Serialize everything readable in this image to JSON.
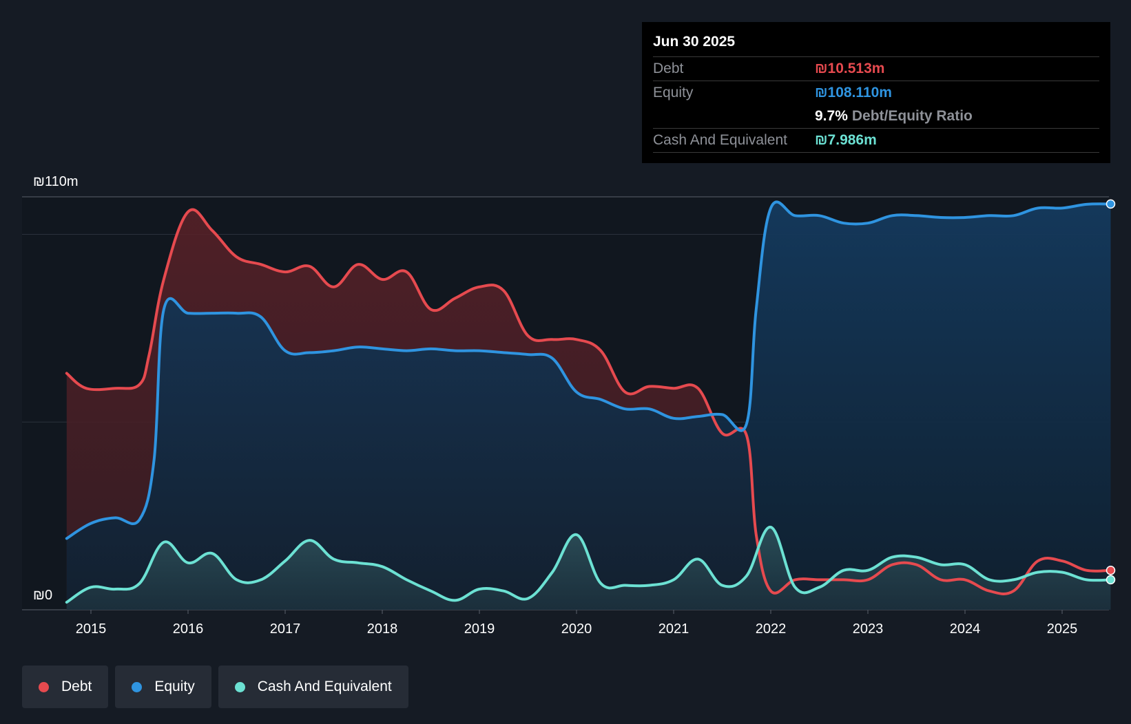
{
  "tooltip": {
    "date": "Jun 30 2025",
    "debt_label": "Debt",
    "debt_value": "₪10.513m",
    "equity_label": "Equity",
    "equity_value": "₪108.110m",
    "ratio_value": "9.7%",
    "ratio_label": "Debt/Equity Ratio",
    "cash_label": "Cash And Equivalent",
    "cash_value": "₪7.986m"
  },
  "legend": {
    "debt": "Debt",
    "equity": "Equity",
    "cash": "Cash And Equivalent"
  },
  "colors": {
    "debt": "#e64a4f",
    "equity": "#2f94e0",
    "cash": "#6ce1d3",
    "background": "#151b24"
  },
  "chart_data": {
    "type": "area",
    "y_top_label": "₪110m",
    "y_zero_label": "₪0",
    "ylim": [
      0,
      110
    ],
    "xlim": [
      2014.75,
      2025.5
    ],
    "x_ticks": [
      "2015",
      "2016",
      "2017",
      "2018",
      "2019",
      "2020",
      "2021",
      "2022",
      "2023",
      "2024",
      "2025"
    ],
    "grid": true,
    "legend_position": "bottom-left",
    "series": [
      {
        "name": "Debt",
        "color": "#e64a4f",
        "points": [
          [
            2014.75,
            63
          ],
          [
            2014.95,
            59
          ],
          [
            2015.25,
            59
          ],
          [
            2015.5,
            60
          ],
          [
            2015.6,
            68
          ],
          [
            2015.75,
            88
          ],
          [
            2016.0,
            106
          ],
          [
            2016.25,
            101
          ],
          [
            2016.5,
            94
          ],
          [
            2016.75,
            92
          ],
          [
            2017.0,
            90
          ],
          [
            2017.25,
            91.5
          ],
          [
            2017.5,
            86
          ],
          [
            2017.75,
            92
          ],
          [
            2018.0,
            88
          ],
          [
            2018.25,
            90
          ],
          [
            2018.5,
            80
          ],
          [
            2018.75,
            83
          ],
          [
            2019.0,
            86
          ],
          [
            2019.25,
            85
          ],
          [
            2019.5,
            73
          ],
          [
            2019.75,
            72
          ],
          [
            2020.0,
            72
          ],
          [
            2020.25,
            69
          ],
          [
            2020.5,
            58
          ],
          [
            2020.75,
            59.5
          ],
          [
            2021.0,
            59
          ],
          [
            2021.25,
            59
          ],
          [
            2021.5,
            47
          ],
          [
            2021.75,
            46.5
          ],
          [
            2021.85,
            20
          ],
          [
            2022.0,
            5
          ],
          [
            2022.25,
            8
          ],
          [
            2022.5,
            8
          ],
          [
            2022.75,
            8
          ],
          [
            2023.0,
            8
          ],
          [
            2023.25,
            12
          ],
          [
            2023.5,
            12
          ],
          [
            2023.75,
            8
          ],
          [
            2024.0,
            8
          ],
          [
            2024.25,
            5
          ],
          [
            2024.5,
            5
          ],
          [
            2024.75,
            13
          ],
          [
            2025.0,
            13
          ],
          [
            2025.25,
            10.5
          ],
          [
            2025.5,
            10.5
          ]
        ]
      },
      {
        "name": "Equity",
        "color": "#2f94e0",
        "points": [
          [
            2014.75,
            19
          ],
          [
            2015.0,
            23
          ],
          [
            2015.25,
            24.5
          ],
          [
            2015.5,
            24
          ],
          [
            2015.65,
            40
          ],
          [
            2015.75,
            80
          ],
          [
            2016.0,
            79
          ],
          [
            2016.25,
            79
          ],
          [
            2016.5,
            79
          ],
          [
            2016.75,
            78
          ],
          [
            2017.0,
            69
          ],
          [
            2017.25,
            68.5
          ],
          [
            2017.5,
            69
          ],
          [
            2017.75,
            70
          ],
          [
            2018.0,
            69.5
          ],
          [
            2018.25,
            69
          ],
          [
            2018.5,
            69.5
          ],
          [
            2018.75,
            69
          ],
          [
            2019.0,
            69
          ],
          [
            2019.25,
            68.5
          ],
          [
            2019.5,
            68
          ],
          [
            2019.75,
            67
          ],
          [
            2020.0,
            58
          ],
          [
            2020.25,
            56
          ],
          [
            2020.5,
            53.5
          ],
          [
            2020.75,
            53.5
          ],
          [
            2021.0,
            51
          ],
          [
            2021.25,
            51.5
          ],
          [
            2021.5,
            52
          ],
          [
            2021.75,
            49.5
          ],
          [
            2021.85,
            80
          ],
          [
            2022.0,
            107
          ],
          [
            2022.25,
            105
          ],
          [
            2022.5,
            105
          ],
          [
            2022.75,
            103
          ],
          [
            2023.0,
            103
          ],
          [
            2023.25,
            105
          ],
          [
            2023.5,
            105
          ],
          [
            2023.75,
            104.5
          ],
          [
            2024.0,
            104.5
          ],
          [
            2024.25,
            105
          ],
          [
            2024.5,
            105
          ],
          [
            2024.75,
            107
          ],
          [
            2025.0,
            107
          ],
          [
            2025.25,
            108
          ],
          [
            2025.5,
            108.1
          ]
        ]
      },
      {
        "name": "Cash And Equivalent",
        "color": "#6ce1d3",
        "points": [
          [
            2014.75,
            2
          ],
          [
            2015.0,
            6
          ],
          [
            2015.25,
            5.5
          ],
          [
            2015.5,
            7
          ],
          [
            2015.75,
            18
          ],
          [
            2016.0,
            12.5
          ],
          [
            2016.25,
            15
          ],
          [
            2016.5,
            8
          ],
          [
            2016.75,
            8
          ],
          [
            2017.0,
            13
          ],
          [
            2017.25,
            18.5
          ],
          [
            2017.5,
            13.5
          ],
          [
            2017.75,
            12.5
          ],
          [
            2018.0,
            11.5
          ],
          [
            2018.25,
            8
          ],
          [
            2018.5,
            5
          ],
          [
            2018.75,
            2.5
          ],
          [
            2019.0,
            5.5
          ],
          [
            2019.25,
            5
          ],
          [
            2019.5,
            3
          ],
          [
            2019.75,
            10
          ],
          [
            2020.0,
            20
          ],
          [
            2020.25,
            7
          ],
          [
            2020.5,
            6.5
          ],
          [
            2020.75,
            6.5
          ],
          [
            2021.0,
            8
          ],
          [
            2021.25,
            13.5
          ],
          [
            2021.5,
            6.5
          ],
          [
            2021.75,
            9
          ],
          [
            2022.0,
            22
          ],
          [
            2022.25,
            6
          ],
          [
            2022.5,
            6
          ],
          [
            2022.75,
            10.5
          ],
          [
            2023.0,
            10.5
          ],
          [
            2023.25,
            14
          ],
          [
            2023.5,
            14
          ],
          [
            2023.75,
            12
          ],
          [
            2024.0,
            12
          ],
          [
            2024.25,
            8
          ],
          [
            2024.5,
            8
          ],
          [
            2024.75,
            10
          ],
          [
            2025.0,
            10
          ],
          [
            2025.25,
            8
          ],
          [
            2025.5,
            8
          ]
        ]
      }
    ]
  }
}
